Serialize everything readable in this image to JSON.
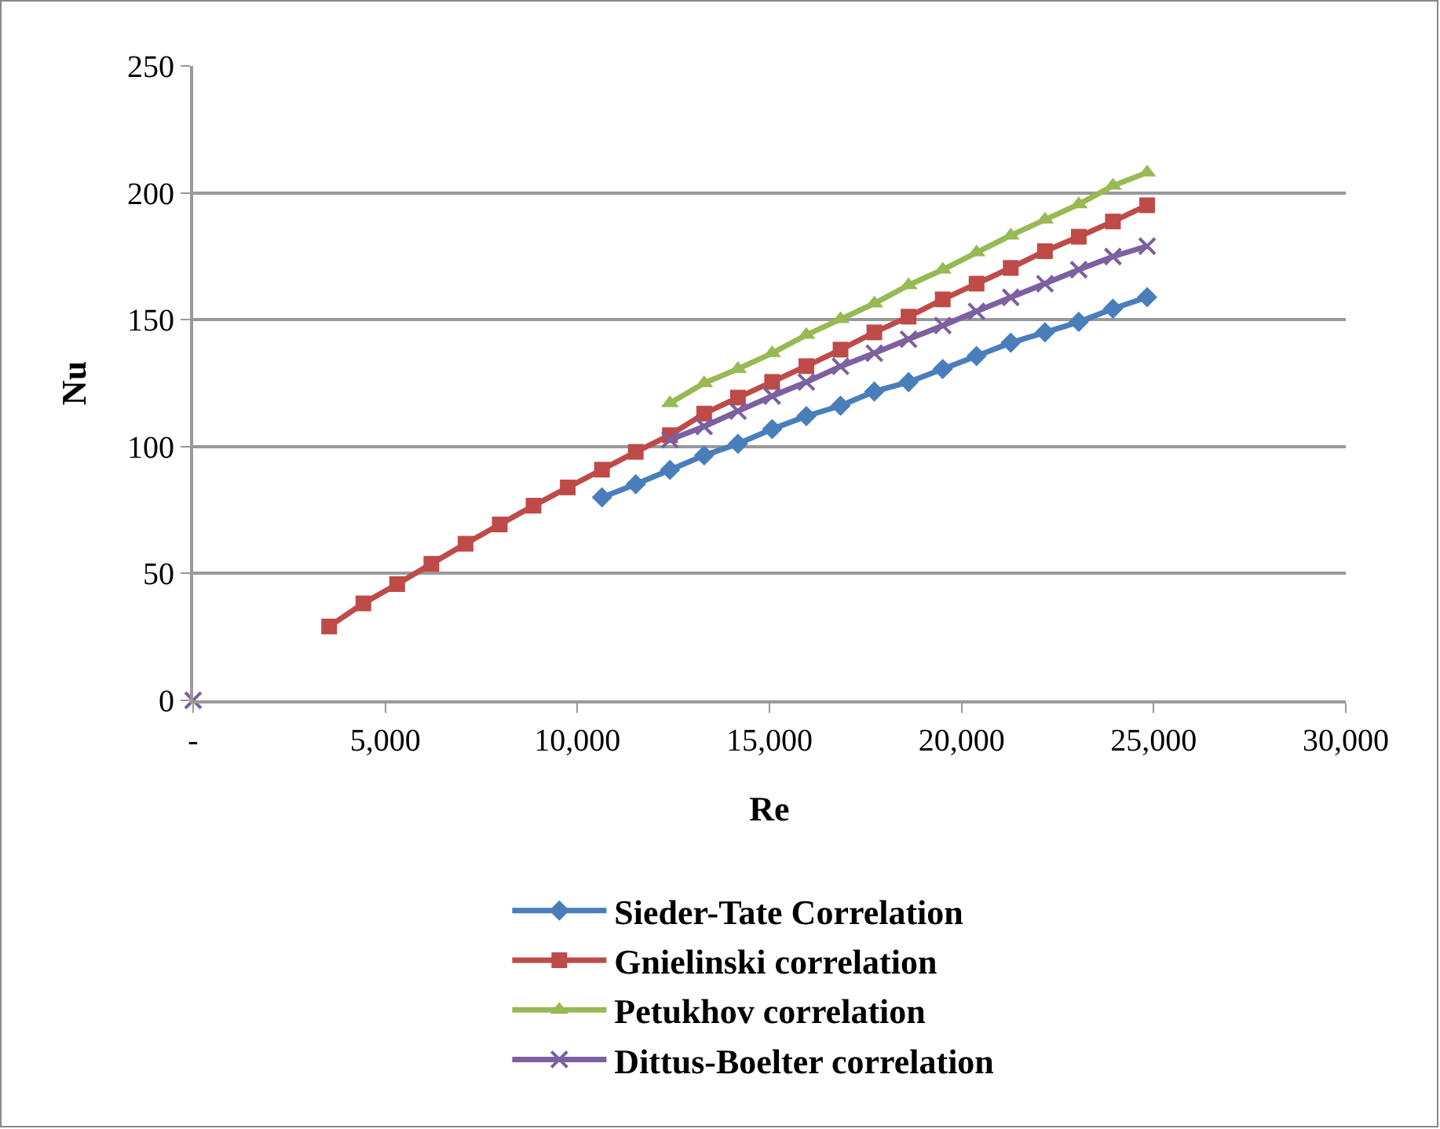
{
  "chart_data": {
    "type": "line",
    "xlabel": "Re",
    "ylabel": "Nu",
    "xlim": [
      0,
      30000
    ],
    "xticks": [
      {
        "value": 0,
        "label": "-"
      },
      {
        "value": 5000,
        "label": "5,000"
      },
      {
        "value": 10000,
        "label": "10,000"
      },
      {
        "value": 15000,
        "label": "15,000"
      },
      {
        "value": 20000,
        "label": "20,000"
      },
      {
        "value": 25000,
        "label": "25,000"
      },
      {
        "value": 30000,
        "label": "30,000"
      }
    ],
    "ylim": [
      0,
      250
    ],
    "yticks": [
      0,
      50,
      100,
      150,
      200,
      250
    ],
    "grid": "y",
    "legend": "bottom",
    "line_style": "solid",
    "series": [
      {
        "name": "Sieder-Tate Correlation",
        "color": "#4a7ebb",
        "marker": "diamond",
        "x": [
          10640,
          11520,
          12410,
          13300,
          14180,
          15070,
          15960,
          16850,
          17730,
          18620,
          19510,
          20390,
          21280,
          22170,
          23050,
          23940,
          24830
        ],
        "values": [
          80.0,
          85.2,
          90.8,
          96.5,
          101.1,
          106.9,
          112.0,
          116.1,
          121.7,
          125.4,
          130.6,
          135.7,
          140.9,
          145.0,
          149.1,
          154.3,
          158.9
        ]
      },
      {
        "name": "Gnielinski correlation",
        "color": "#be4b48",
        "marker": "square",
        "x": [
          3540,
          4430,
          5310,
          6200,
          7090,
          7980,
          8860,
          9750,
          10640,
          11520,
          12410,
          13300,
          14180,
          15070,
          15960,
          16850,
          17730,
          18620,
          19510,
          20390,
          21280,
          22170,
          23050,
          23940,
          24830
        ],
        "values": [
          29.1,
          38.2,
          45.8,
          53.8,
          61.7,
          69.3,
          76.7,
          83.9,
          90.9,
          97.9,
          104.5,
          113.0,
          119.3,
          125.5,
          131.7,
          138.2,
          145.0,
          151.2,
          158.0,
          164.2,
          170.4,
          177.0,
          182.7,
          188.7,
          195.1
        ]
      },
      {
        "name": "Petukhov correlation",
        "color": "#98b954",
        "marker": "triangle",
        "x": [
          12410,
          13300,
          14180,
          15070,
          15960,
          16850,
          17730,
          18620,
          19510,
          20390,
          21280,
          22170,
          23050,
          23940,
          24830
        ],
        "values": [
          117.1,
          125.0,
          130.6,
          136.8,
          144.0,
          150.2,
          156.4,
          163.6,
          169.7,
          176.5,
          183.2,
          189.4,
          195.5,
          202.8,
          208.0
        ]
      },
      {
        "name": "Dittus-Boelter correlation",
        "color": "#7d60a0",
        "marker": "cross",
        "x": [
          0,
          6200,
          12410,
          13300,
          14180,
          15070,
          15960,
          16850,
          17730,
          18620,
          19510,
          20390,
          21280,
          22170,
          23050,
          23940,
          24830
        ],
        "values": [
          0,
          null,
          102.7,
          107.9,
          114.0,
          119.9,
          125.4,
          131.6,
          136.8,
          142.3,
          147.7,
          153.3,
          158.8,
          164.2,
          169.7,
          174.9,
          179.0
        ]
      }
    ]
  }
}
